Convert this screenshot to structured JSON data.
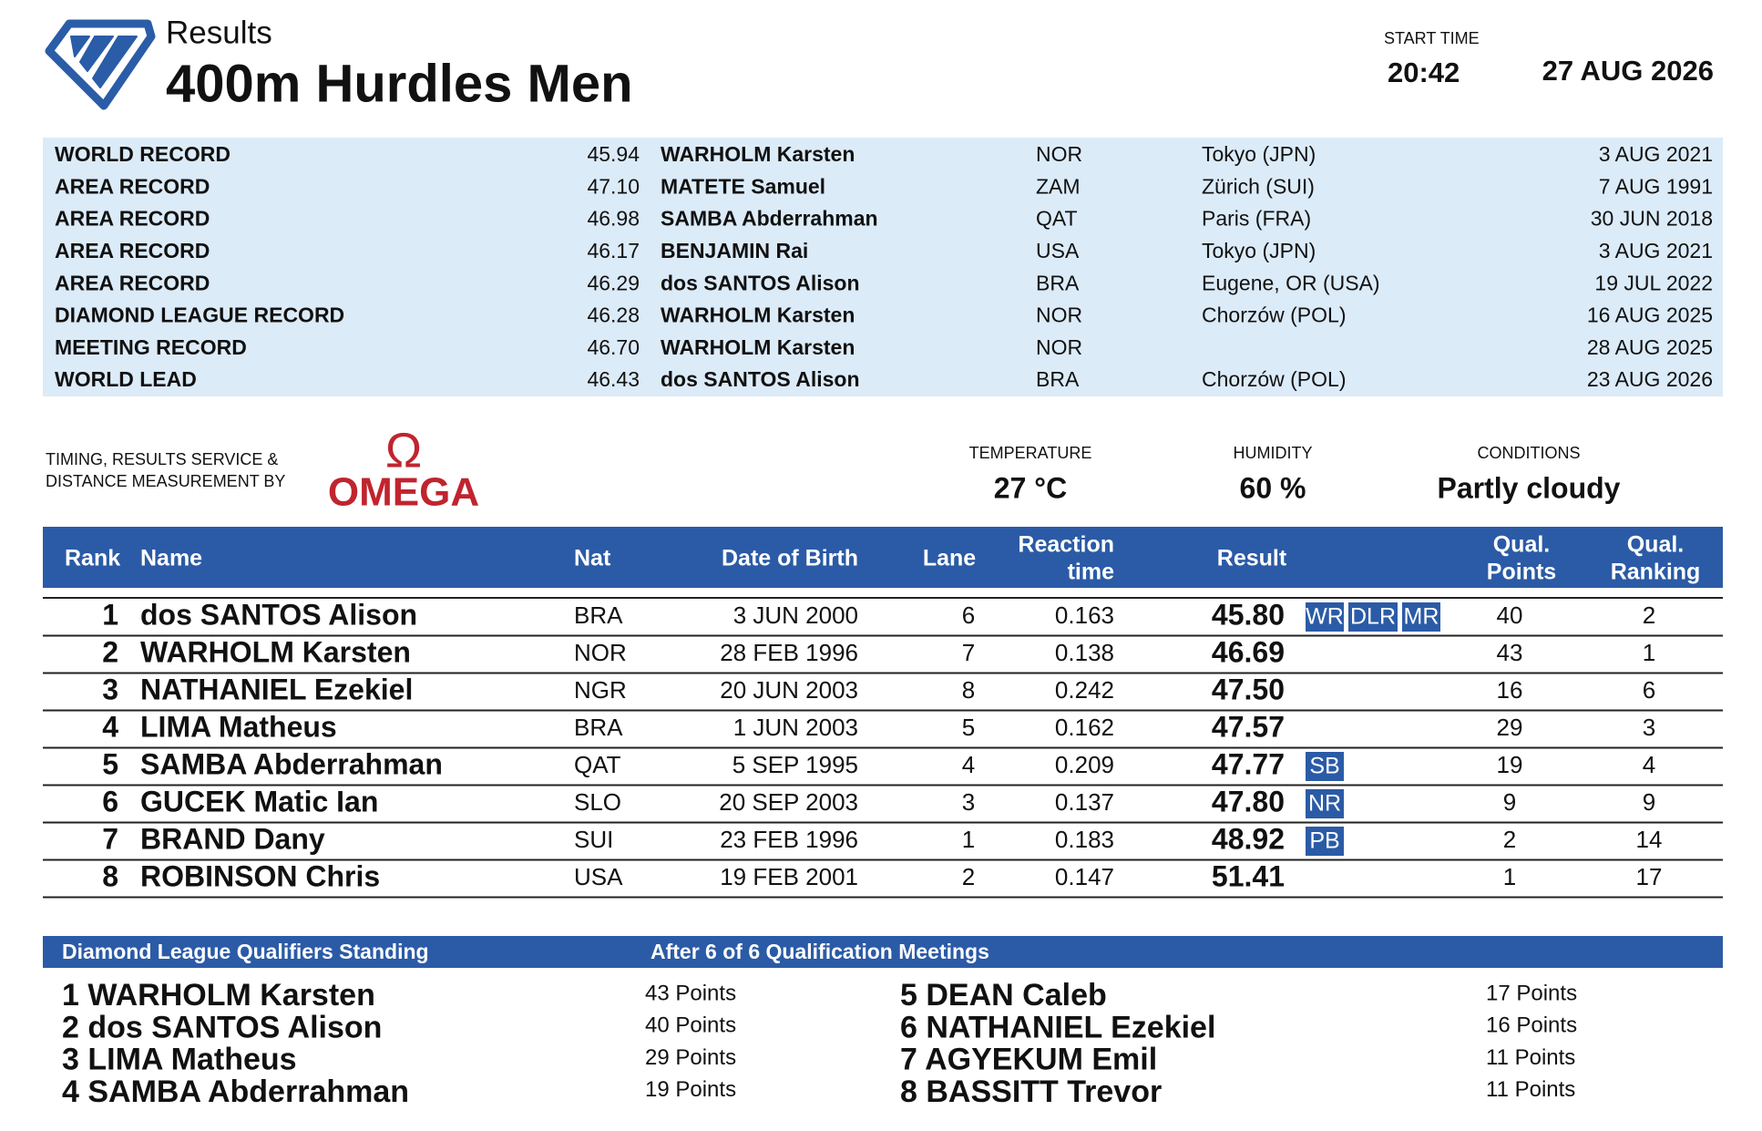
{
  "header": {
    "subtitle": "Results",
    "title": "400m Hurdles Men",
    "start_time_label": "START TIME",
    "start_time": "20:42",
    "date": "27 AUG 2026"
  },
  "records": [
    {
      "label": "WORLD RECORD",
      "mark": "45.94",
      "name": "WARHOLM Karsten",
      "nat": "NOR",
      "venue": "Tokyo (JPN)",
      "date": "3 AUG 2021"
    },
    {
      "label": "AREA RECORD",
      "mark": "47.10",
      "name": "MATETE Samuel",
      "nat": "ZAM",
      "venue": "Zürich (SUI)",
      "date": "7 AUG 1991"
    },
    {
      "label": "AREA RECORD",
      "mark": "46.98",
      "name": "SAMBA Abderrahman",
      "nat": "QAT",
      "venue": "Paris (FRA)",
      "date": "30 JUN 2018"
    },
    {
      "label": "AREA RECORD",
      "mark": "46.17",
      "name": "BENJAMIN Rai",
      "nat": "USA",
      "venue": "Tokyo (JPN)",
      "date": "3 AUG 2021"
    },
    {
      "label": "AREA RECORD",
      "mark": "46.29",
      "name": "dos SANTOS Alison",
      "nat": "BRA",
      "venue": "Eugene, OR (USA)",
      "date": "19 JUL 2022"
    },
    {
      "label": "DIAMOND LEAGUE RECORD",
      "mark": "46.28",
      "name": "WARHOLM Karsten",
      "nat": "NOR",
      "venue": "Chorzów (POL)",
      "date": "16 AUG 2025"
    },
    {
      "label": "MEETING RECORD",
      "mark": "46.70",
      "name": "WARHOLM Karsten",
      "nat": "NOR",
      "date": "28 AUG 2025"
    },
    {
      "label": "WORLD LEAD",
      "mark": "46.43",
      "name": "dos SANTOS Alison",
      "nat": "BRA",
      "venue": "Chorzów (POL)",
      "date": "23 AUG 2026"
    }
  ],
  "timing": {
    "label_lines": [
      "TIMING, RESULTS SERVICE &",
      "DISTANCE MEASUREMENT BY"
    ],
    "logo_symbol": "Ω",
    "logo": "OMEGA"
  },
  "weather": [
    {
      "label": "TEMPERATURE",
      "value": "27 °C"
    },
    {
      "label": "HUMIDITY",
      "value": "60 %"
    },
    {
      "label": "CONDITIONS",
      "value": "Partly cloudy"
    }
  ],
  "results": {
    "headers": {
      "rank": "Rank",
      "name": "Name",
      "nat": "Nat",
      "dob": "Date of Birth",
      "lane": "Lane",
      "reaction": [
        "Reaction",
        "time"
      ],
      "result": "Result",
      "qual_points": [
        "Qual.",
        "Points"
      ],
      "qual_ranking": [
        "Qual.",
        "Ranking"
      ]
    },
    "rows": [
      {
        "rank": 1,
        "name": "dos SANTOS Alison",
        "nat": "BRA",
        "dob": "3 JUN 2000",
        "lane": 6,
        "reaction": "0.163",
        "result": "45.80",
        "badges": [
          "WR",
          "DLR",
          "MR"
        ],
        "qual_points": 40,
        "qual_ranking": 2
      },
      {
        "rank": 2,
        "name": "WARHOLM Karsten",
        "nat": "NOR",
        "dob": "28 FEB 1996",
        "lane": 7,
        "reaction": "0.138",
        "result": "46.69",
        "badges": [],
        "qual_points": 43,
        "qual_ranking": 1
      },
      {
        "rank": 3,
        "name": "NATHANIEL Ezekiel",
        "nat": "NGR",
        "dob": "20 JUN 2003",
        "lane": 8,
        "reaction": "0.242",
        "result": "47.50",
        "badges": [],
        "qual_points": 16,
        "qual_ranking": 6
      },
      {
        "rank": 4,
        "name": "LIMA Matheus",
        "nat": "BRA",
        "dob": "1 JUN 2003",
        "lane": 5,
        "reaction": "0.162",
        "result": "47.57",
        "badges": [],
        "qual_points": 29,
        "qual_ranking": 3
      },
      {
        "rank": 5,
        "name": "SAMBA Abderrahman",
        "nat": "QAT",
        "dob": "5 SEP 1995",
        "lane": 4,
        "reaction": "0.209",
        "result": "47.77",
        "badges": [
          "SB"
        ],
        "qual_points": 19,
        "qual_ranking": 4
      },
      {
        "rank": 6,
        "name": "GUCEK Matic Ian",
        "nat": "SLO",
        "dob": "20 SEP 2003",
        "lane": 3,
        "reaction": "0.137",
        "result": "47.80",
        "badges": [
          "NR"
        ],
        "qual_points": 9,
        "qual_ranking": 9
      },
      {
        "rank": 7,
        "name": "BRAND Dany",
        "nat": "SUI",
        "dob": "23 FEB 1996",
        "lane": 1,
        "reaction": "0.183",
        "result": "48.92",
        "badges": [
          "PB"
        ],
        "qual_points": 2,
        "qual_ranking": 14
      },
      {
        "rank": 8,
        "name": "ROBINSON Chris",
        "nat": "USA",
        "dob": "19 FEB 2001",
        "lane": 2,
        "reaction": "0.147",
        "result": "51.41",
        "badges": [],
        "qual_points": 1,
        "qual_ranking": 17
      }
    ]
  },
  "standing": {
    "title": "Diamond League Qualifiers Standing",
    "note": "After 6 of 6 Qualification Meetings",
    "entries": [
      {
        "rank": 1,
        "name": "WARHOLM Karsten",
        "points": "43 Points"
      },
      {
        "rank": 2,
        "name": "dos SANTOS Alison",
        "points": "40 Points"
      },
      {
        "rank": 3,
        "name": "LIMA Matheus",
        "points": "29 Points"
      },
      {
        "rank": 4,
        "name": "SAMBA Abderrahman",
        "points": "19 Points"
      },
      {
        "rank": 5,
        "name": "DEAN Caleb",
        "points": "17 Points"
      },
      {
        "rank": 6,
        "name": "NATHANIEL Ezekiel",
        "points": "16 Points"
      },
      {
        "rank": 7,
        "name": "AGYEKUM Emil",
        "points": "11 Points"
      },
      {
        "rank": 8,
        "name": "BASSITT Trevor",
        "points": "11 Points"
      }
    ]
  }
}
